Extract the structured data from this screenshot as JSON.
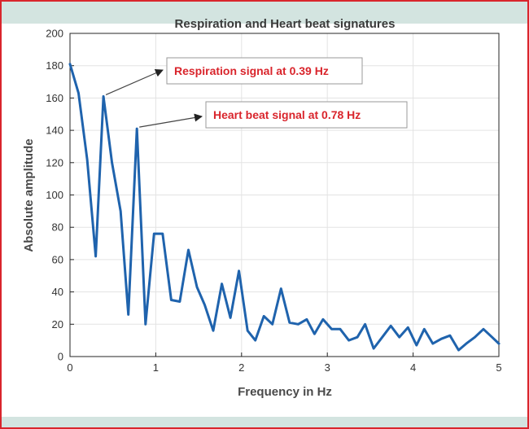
{
  "chart_data": {
    "type": "line",
    "title": "Respiration and Heart beat signatures",
    "xlabel": "Frequency in Hz",
    "ylabel": "Absolute amplitude",
    "xlim": [
      0,
      5
    ],
    "ylim": [
      0,
      200
    ],
    "xticks": [
      "0",
      "1",
      "2",
      "3",
      "4",
      "5"
    ],
    "yticks": [
      "0",
      "20",
      "40",
      "60",
      "80",
      "100",
      "120",
      "140",
      "160",
      "180",
      "200"
    ],
    "grid": true,
    "series": [
      {
        "color": "#1f63ad",
        "x": [
          0.0,
          0.1,
          0.2,
          0.3,
          0.39,
          0.49,
          0.59,
          0.68,
          0.78,
          0.88,
          0.98,
          1.08,
          1.18,
          1.28,
          1.38,
          1.48,
          1.57,
          1.67,
          1.77,
          1.87,
          1.97,
          2.07,
          2.16,
          2.26,
          2.36,
          2.46,
          2.56,
          2.66,
          2.76,
          2.85,
          2.95,
          3.05,
          3.15,
          3.25,
          3.35,
          3.44,
          3.54,
          3.64,
          3.74,
          3.84,
          3.94,
          4.04,
          4.13,
          4.23,
          4.33,
          4.43,
          4.53,
          4.62,
          4.72,
          4.82,
          4.92,
          5.0
        ],
        "y": [
          181,
          163,
          122,
          62,
          161,
          120,
          90,
          26,
          141,
          20,
          76,
          76,
          35,
          34,
          66,
          43,
          32,
          16,
          45,
          24,
          53,
          16,
          10,
          25,
          20,
          42,
          21,
          20,
          23,
          14,
          23,
          17,
          17,
          10,
          12,
          20,
          5,
          12,
          19,
          12,
          18,
          7,
          17,
          8,
          11,
          13,
          4,
          8,
          12,
          17,
          12,
          8
        ]
      }
    ],
    "annotations": [
      {
        "text": "Respiration signal at 0.39 Hz",
        "target_x": 0.39,
        "target_y": 161,
        "color": "#d9252c"
      },
      {
        "text": "Heart beat signal at 0.78 Hz",
        "target_x": 0.78,
        "target_y": 141,
        "color": "#d9252c"
      }
    ]
  }
}
